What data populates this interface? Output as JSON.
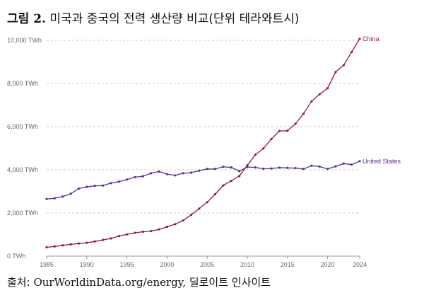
{
  "figure": {
    "label": "그림 2.",
    "title": "미국과 중국의 전력 생산량 비교(단위 테라와트시)"
  },
  "source": {
    "prefix": "출처:",
    "link": "OurWorldinData.org/energy,",
    "note": "딜로이트 인사이트"
  },
  "colors": {
    "china": "#8b1f3b",
    "us": "#5b2e91",
    "grid": "#c9c9c9",
    "axis": "#999999",
    "tick_text": "#666666"
  },
  "chart_data": {
    "type": "line",
    "title": "미국과 중국의 전력 생산량 비교(단위 테라와트시)",
    "xlabel": "",
    "ylabel": "",
    "xlim": [
      1985,
      2024
    ],
    "ylim": [
      0,
      10000
    ],
    "grid": true,
    "y_ticks": [
      {
        "value": 0,
        "label": "0 TWh"
      },
      {
        "value": 2000,
        "label": "2,000 TWh"
      },
      {
        "value": 4000,
        "label": "4,000 TWh"
      },
      {
        "value": 6000,
        "label": "6,000 TWh"
      },
      {
        "value": 8000,
        "label": "8,000 TWh"
      },
      {
        "value": 10000,
        "label": "10,000 TWh"
      }
    ],
    "x_ticks": [
      {
        "value": 1985,
        "label": "1985"
      },
      {
        "value": 1990,
        "label": "1990"
      },
      {
        "value": 1995,
        "label": "1995"
      },
      {
        "value": 2000,
        "label": "2000"
      },
      {
        "value": 2005,
        "label": "2005"
      },
      {
        "value": 2010,
        "label": "2010"
      },
      {
        "value": 2015,
        "label": "2015"
      },
      {
        "value": 2020,
        "label": "2020"
      },
      {
        "value": 2024,
        "label": "2024"
      }
    ],
    "x": [
      1985,
      1986,
      1987,
      1988,
      1989,
      1990,
      1991,
      1992,
      1993,
      1994,
      1995,
      1996,
      1997,
      1998,
      1999,
      2000,
      2001,
      2002,
      2003,
      2004,
      2005,
      2006,
      2007,
      2008,
      2009,
      2010,
      2011,
      2012,
      2013,
      2014,
      2015,
      2016,
      2017,
      2018,
      2019,
      2020,
      2021,
      2022,
      2023,
      2024
    ],
    "series": [
      {
        "name": "China",
        "key": "china",
        "values": [
          410,
          450,
          500,
          545,
          585,
          620,
          680,
          750,
          820,
          930,
          1010,
          1080,
          1130,
          1160,
          1240,
          1360,
          1480,
          1650,
          1910,
          2200,
          2500,
          2870,
          3280,
          3490,
          3710,
          4210,
          4700,
          4990,
          5430,
          5800,
          5810,
          6130,
          6600,
          7170,
          7500,
          7780,
          8530,
          8850,
          9460,
          10070
        ]
      },
      {
        "name": "United States",
        "key": "us",
        "values": [
          2650,
          2680,
          2760,
          2890,
          3130,
          3210,
          3260,
          3270,
          3380,
          3450,
          3550,
          3660,
          3700,
          3840,
          3920,
          3800,
          3740,
          3840,
          3870,
          3960,
          4040,
          4040,
          4140,
          4110,
          3940,
          4130,
          4110,
          4050,
          4060,
          4100,
          4090,
          4080,
          4040,
          4190,
          4150,
          4040,
          4160,
          4290,
          4240,
          4400
        ]
      }
    ]
  }
}
